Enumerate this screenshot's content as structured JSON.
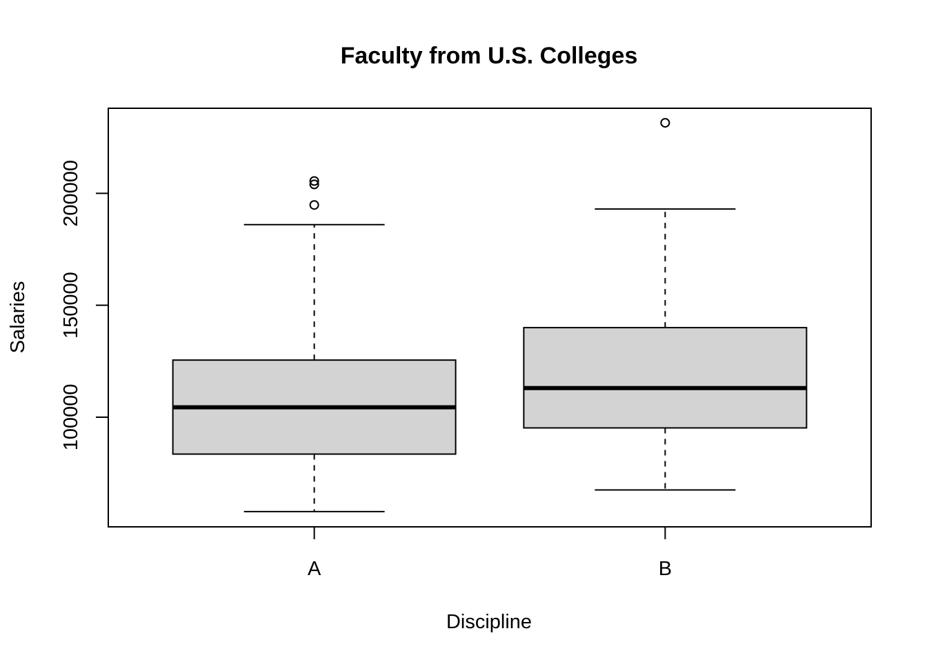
{
  "chart_data": {
    "type": "box",
    "title": "Faculty from U.S. Colleges",
    "xlabel": "Discipline",
    "ylabel": "Salaries",
    "categories": [
      "A",
      "B"
    ],
    "boxes": [
      {
        "category": "A",
        "whisker_low": 57800,
        "q1": 83500,
        "median": 104400,
        "q3": 125500,
        "whisker_high": 186000,
        "outliers": [
          194800,
          204000,
          205500
        ]
      },
      {
        "category": "B",
        "whisker_low": 67500,
        "q1": 95200,
        "median": 113000,
        "q3": 140000,
        "whisker_high": 193000,
        "outliers": [
          231500
        ]
      }
    ],
    "yticks": [
      "100000",
      "150000",
      "200000"
    ],
    "ylim": [
      51000,
      238000
    ],
    "grid": false,
    "legend": "none",
    "colors": {
      "box_fill": "#d3d3d3",
      "stroke": "#000000"
    }
  }
}
